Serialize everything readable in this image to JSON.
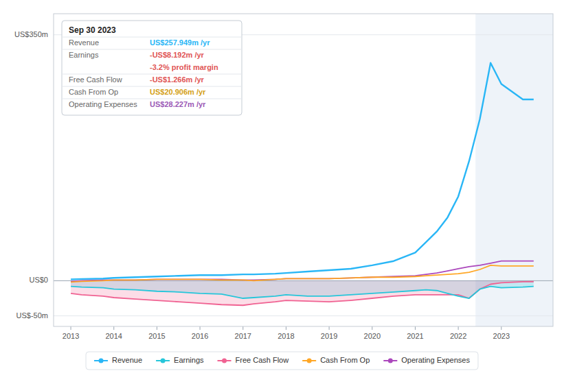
{
  "chart_data": {
    "type": "line",
    "x": [
      2013,
      2013.25,
      2013.75,
      2014,
      2014.5,
      2015,
      2015.5,
      2016,
      2016.5,
      2017,
      2017.25,
      2017.75,
      2018,
      2018.5,
      2019,
      2019.5,
      2020,
      2020.5,
      2021,
      2021.25,
      2021.5,
      2021.75,
      2022,
      2022.25,
      2022.5,
      2022.75,
      2023,
      2023.5,
      2023.75
    ],
    "series": [
      {
        "name": "Revenue",
        "color": "#29b6f6",
        "values": [
          2,
          2.5,
          3,
          4,
          5,
          6,
          7,
          8,
          8,
          9,
          9,
          10,
          11,
          13,
          15,
          17,
          22,
          28,
          40,
          55,
          70,
          90,
          120,
          170,
          230,
          310,
          280,
          258,
          258
        ]
      },
      {
        "name": "Earnings",
        "color": "#26c6da",
        "type": "area",
        "values": [
          -8,
          -9,
          -10,
          -12,
          -13,
          -15,
          -16,
          -18,
          -19,
          -25,
          -24,
          -22,
          -20,
          -22,
          -22,
          -20,
          -18,
          -16,
          -14,
          -13,
          -14,
          -18,
          -22,
          -25,
          -12,
          -8,
          -10,
          -9,
          -8
        ]
      },
      {
        "name": "Free Cash Flow",
        "color": "#f06292",
        "type": "area",
        "values": [
          -18,
          -20,
          -22,
          -24,
          -26,
          -28,
          -30,
          -32,
          -34,
          -35,
          -33,
          -30,
          -28,
          -29,
          -30,
          -28,
          -25,
          -22,
          -20,
          -20,
          -20,
          -20,
          -20,
          -25,
          -12,
          -5,
          -3,
          -1.5,
          -1.3
        ]
      },
      {
        "name": "Cash From Op",
        "color": "#ffa726",
        "values": [
          -2,
          -1,
          0,
          1,
          1,
          2,
          2,
          2,
          1,
          1,
          0,
          2,
          3,
          3,
          3,
          4,
          5,
          5,
          6,
          7,
          8,
          9,
          10,
          12,
          16,
          22,
          21,
          21,
          21
        ]
      },
      {
        "name": "Operating Expenses",
        "color": "#ab47bc",
        "values": [
          -1,
          0,
          1,
          1,
          1,
          2,
          2,
          2,
          2,
          1,
          1,
          2,
          3,
          3,
          3,
          4,
          5,
          6,
          7,
          9,
          11,
          14,
          17,
          20,
          22,
          25,
          28,
          28,
          28
        ]
      }
    ],
    "xlim": [
      2012.6,
      2024.2
    ],
    "xticks": [
      2013,
      2014,
      2015,
      2016,
      2017,
      2018,
      2019,
      2020,
      2021,
      2022,
      2023
    ],
    "ylim": [
      -65,
      380
    ],
    "yticks": [
      {
        "value": -50,
        "label": "US$-50m"
      },
      {
        "value": 0,
        "label": "US$0"
      },
      {
        "value": 350,
        "label": "US$350m"
      }
    ],
    "grid": "y",
    "legend": "bottom",
    "highlight": {
      "xmin": 2022.4,
      "xmax": 2024.3
    },
    "annotation": {
      "title": "Sep 30 2023",
      "rows": [
        {
          "label": "Revenue",
          "value": "US$257.949m /yr",
          "color": "#29b6f6"
        },
        {
          "label": "Earnings",
          "value": "-US$8.192m /yr",
          "color": "#e05555"
        },
        {
          "value": "-3.2% profit margin",
          "color": "#e05555"
        },
        {
          "label": "Free Cash Flow",
          "value": "-US$1.266m /yr",
          "color": "#e05555"
        },
        {
          "label": "Cash From Op",
          "value": "US$20.906m /yr",
          "color": "#d4a017"
        },
        {
          "label": "Operating Expenses",
          "value": "US$28.227m /yr",
          "color": "#9b59b6"
        }
      ]
    }
  }
}
